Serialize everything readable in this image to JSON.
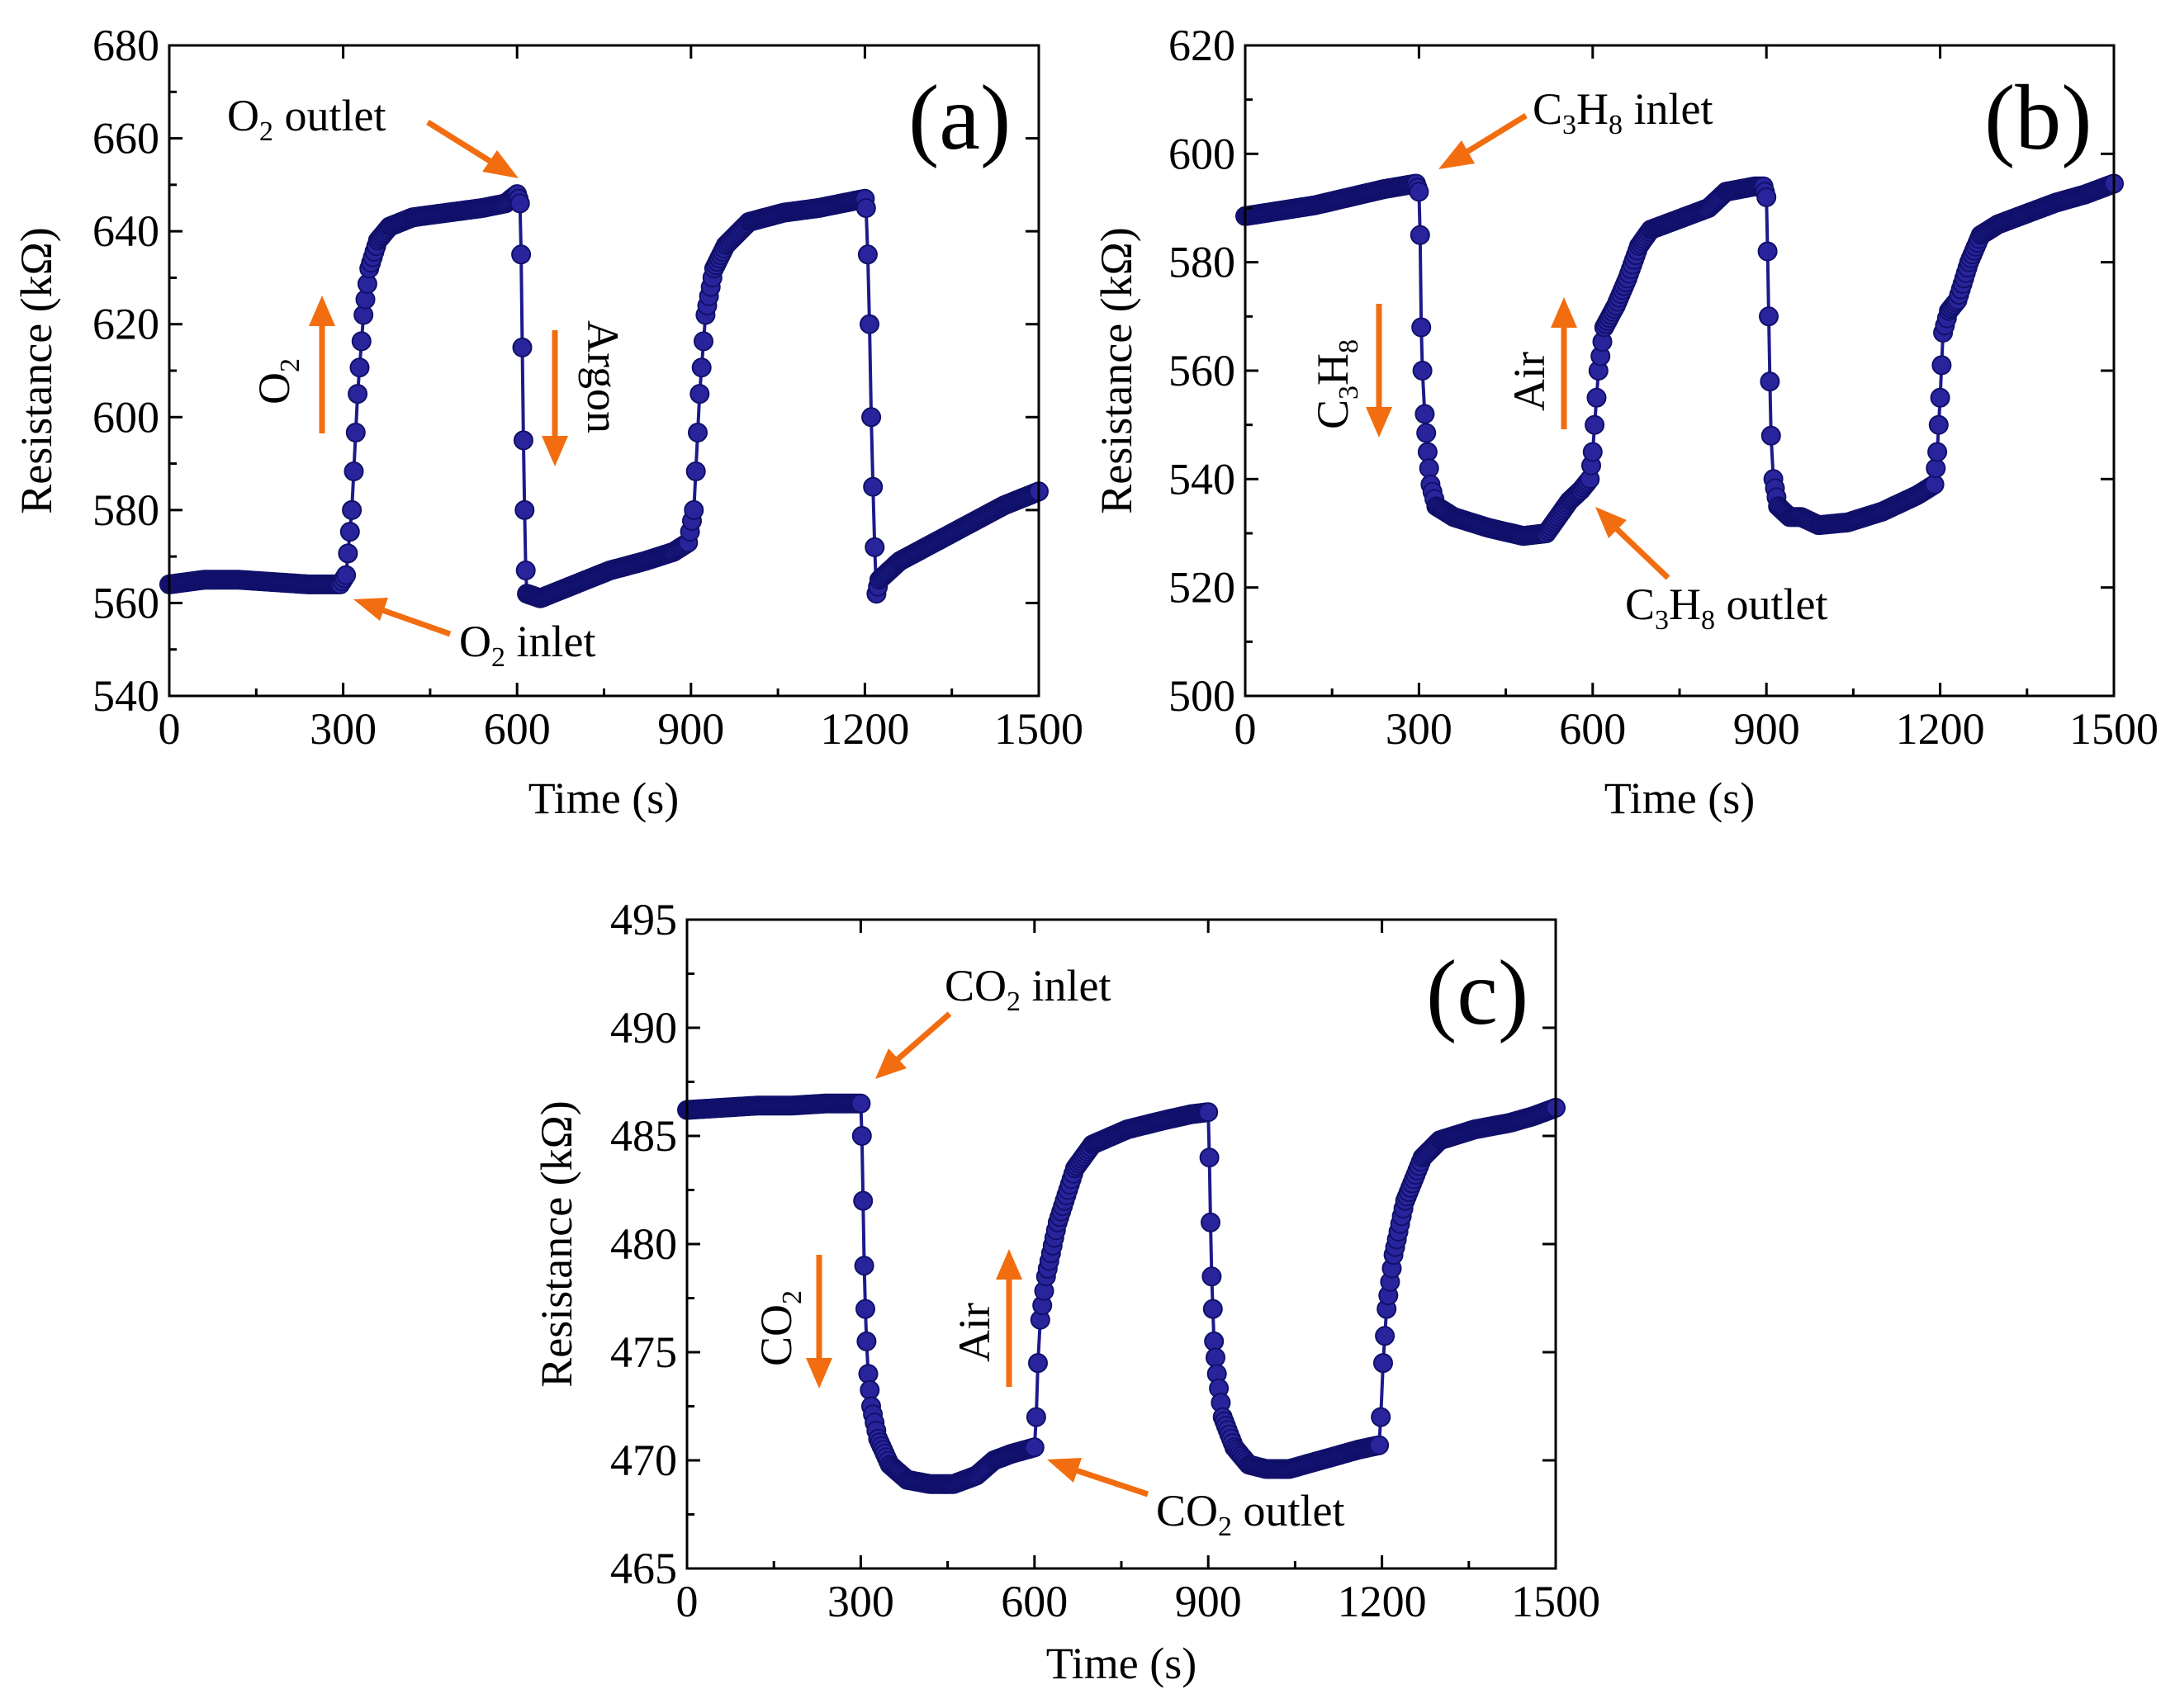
{
  "chart_data": [
    {
      "type": "line",
      "panel_label": "(a)",
      "xlabel": "Time (s)",
      "ylabel": "Resistance (kΩ)",
      "xlim": [
        0,
        1500
      ],
      "ylim": [
        540,
        680
      ],
      "x_ticks": [
        0,
        300,
        600,
        900,
        1200,
        1500
      ],
      "y_ticks": [
        540,
        560,
        580,
        600,
        620,
        640,
        660,
        680
      ],
      "series": [
        {
          "name": "Resistance",
          "points": [
            [
              0,
              564
            ],
            [
              60,
              565
            ],
            [
              120,
              565
            ],
            [
              180,
              564.5
            ],
            [
              240,
              564
            ],
            [
              295,
              564
            ],
            [
              305,
              566
            ],
            [
              315,
              580
            ],
            [
              325,
              605
            ],
            [
              335,
              622
            ],
            [
              345,
              632
            ],
            [
              360,
              638
            ],
            [
              380,
              641
            ],
            [
              420,
              643
            ],
            [
              480,
              644
            ],
            [
              540,
              645
            ],
            [
              580,
              646
            ],
            [
              600,
              648
            ],
            [
              605,
              646
            ],
            [
              607,
              635
            ],
            [
              609,
              615
            ],
            [
              611,
              595
            ],
            [
              613,
              580
            ],
            [
              615,
              567
            ],
            [
              617,
              562
            ],
            [
              640,
              561
            ],
            [
              700,
              564
            ],
            [
              760,
              567
            ],
            [
              820,
              569
            ],
            [
              870,
              571
            ],
            [
              895,
              573
            ],
            [
              905,
              580
            ],
            [
              915,
              605
            ],
            [
              925,
              622
            ],
            [
              940,
              632
            ],
            [
              960,
              637
            ],
            [
              1000,
              642
            ],
            [
              1060,
              644
            ],
            [
              1120,
              645
            ],
            [
              1160,
              646
            ],
            [
              1200,
              647
            ],
            [
              1202,
              645
            ],
            [
              1205,
              635
            ],
            [
              1208,
              620
            ],
            [
              1211,
              600
            ],
            [
              1214,
              585
            ],
            [
              1217,
              572
            ],
            [
              1220,
              562
            ],
            [
              1225,
              565
            ],
            [
              1260,
              569
            ],
            [
              1320,
              573
            ],
            [
              1380,
              577
            ],
            [
              1440,
              581
            ],
            [
              1500,
              584
            ]
          ]
        }
      ],
      "annotations": [
        {
          "text": "O₂ outlet",
          "target": [
            600,
            646
          ]
        },
        {
          "text": "O₂ inlet",
          "target": [
            300,
            564
          ]
        },
        {
          "text": "O₂",
          "direction": "up"
        },
        {
          "text": "Argon",
          "direction": "down"
        }
      ]
    },
    {
      "type": "line",
      "panel_label": "(b)",
      "xlabel": "Time (s)",
      "ylabel": "Resistance (kΩ)",
      "xlim": [
        0,
        1500
      ],
      "ylim": [
        500,
        620
      ],
      "x_ticks": [
        0,
        300,
        600,
        900,
        1200,
        1500
      ],
      "y_ticks": [
        500,
        520,
        540,
        560,
        580,
        600,
        620
      ],
      "series": [
        {
          "name": "Resistance",
          "points": [
            [
              0,
              588.5
            ],
            [
              60,
              589.5
            ],
            [
              120,
              590.5
            ],
            [
              180,
              592
            ],
            [
              240,
              593.5
            ],
            [
              295,
              594.5
            ],
            [
              300,
              593
            ],
            [
              302,
              585
            ],
            [
              304,
              568
            ],
            [
              306,
              560
            ],
            [
              310,
              552
            ],
            [
              315,
              545
            ],
            [
              320,
              539
            ],
            [
              330,
              535
            ],
            [
              360,
              533
            ],
            [
              420,
              531
            ],
            [
              480,
              529.5
            ],
            [
              520,
              530
            ],
            [
              540,
              533
            ],
            [
              560,
              536
            ],
            [
              580,
              538
            ],
            [
              595,
              540
            ],
            [
              600,
              545
            ],
            [
              610,
              560
            ],
            [
              620,
              568
            ],
            [
              640,
              572
            ],
            [
              660,
              577
            ],
            [
              680,
              583
            ],
            [
              700,
              586
            ],
            [
              750,
              588
            ],
            [
              800,
              590
            ],
            [
              830,
              593
            ],
            [
              880,
              594
            ],
            [
              895,
              594
            ],
            [
              900,
              592
            ],
            [
              902,
              582
            ],
            [
              904,
              570
            ],
            [
              906,
              558
            ],
            [
              908,
              548
            ],
            [
              912,
              540
            ],
            [
              920,
              535
            ],
            [
              940,
              533
            ],
            [
              960,
              533
            ],
            [
              990,
              531.5
            ],
            [
              1040,
              532
            ],
            [
              1100,
              534
            ],
            [
              1160,
              537
            ],
            [
              1190,
              539
            ],
            [
              1195,
              545
            ],
            [
              1200,
              555
            ],
            [
              1205,
              567
            ],
            [
              1215,
              571
            ],
            [
              1230,
              573
            ],
            [
              1250,
              580
            ],
            [
              1270,
              585
            ],
            [
              1300,
              587
            ],
            [
              1350,
              589
            ],
            [
              1400,
              591
            ],
            [
              1450,
              592.5
            ],
            [
              1500,
              594.5
            ]
          ]
        }
      ],
      "annotations": [
        {
          "text": "C₃H₈ inlet",
          "target": [
            300,
            594
          ]
        },
        {
          "text": "C₃H₈ outlet",
          "target": [
            600,
            540
          ]
        },
        {
          "text": "C₃H₈",
          "direction": "down"
        },
        {
          "text": "Air",
          "direction": "up"
        }
      ]
    },
    {
      "type": "line",
      "panel_label": "(c)",
      "xlabel": "Time (s)",
      "ylabel": "Resistance (kΩ)",
      "xlim": [
        0,
        1500
      ],
      "ylim": [
        465,
        495
      ],
      "x_ticks": [
        0,
        300,
        600,
        900,
        1200,
        1500
      ],
      "y_ticks": [
        465,
        470,
        475,
        480,
        485,
        490,
        495
      ],
      "series": [
        {
          "name": "Resistance",
          "points": [
            [
              0,
              486.2
            ],
            [
              60,
              486.3
            ],
            [
              120,
              486.4
            ],
            [
              180,
              486.4
            ],
            [
              240,
              486.5
            ],
            [
              300,
              486.5
            ],
            [
              302,
              485
            ],
            [
              304,
              482
            ],
            [
              306,
              479
            ],
            [
              308,
              477
            ],
            [
              310,
              475.5
            ],
            [
              313,
              474
            ],
            [
              318,
              472.5
            ],
            [
              330,
              471
            ],
            [
              350,
              469.8
            ],
            [
              380,
              469.1
            ],
            [
              420,
              468.9
            ],
            [
              460,
              468.9
            ],
            [
              500,
              469.3
            ],
            [
              530,
              470
            ],
            [
              560,
              470.3
            ],
            [
              600,
              470.6
            ],
            [
              603,
              472
            ],
            [
              606,
              474.5
            ],
            [
              610,
              476.5
            ],
            [
              620,
              478.5
            ],
            [
              640,
              481
            ],
            [
              670,
              483.5
            ],
            [
              700,
              484.6
            ],
            [
              760,
              485.3
            ],
            [
              820,
              485.7
            ],
            [
              870,
              486
            ],
            [
              900,
              486.1
            ],
            [
              902,
              484
            ],
            [
              904,
              481
            ],
            [
              906,
              478.5
            ],
            [
              908,
              477
            ],
            [
              910,
              475.5
            ],
            [
              915,
              474
            ],
            [
              925,
              472
            ],
            [
              945,
              470.6
            ],
            [
              970,
              469.8
            ],
            [
              1000,
              469.6
            ],
            [
              1040,
              469.6
            ],
            [
              1080,
              469.9
            ],
            [
              1120,
              470.2
            ],
            [
              1160,
              470.5
            ],
            [
              1195,
              470.7
            ],
            [
              1198,
              472
            ],
            [
              1202,
              474.5
            ],
            [
              1208,
              477
            ],
            [
              1220,
              479.5
            ],
            [
              1240,
              482
            ],
            [
              1270,
              484
            ],
            [
              1300,
              484.8
            ],
            [
              1360,
              485.3
            ],
            [
              1420,
              485.6
            ],
            [
              1460,
              485.9
            ],
            [
              1500,
              486.3
            ]
          ]
        }
      ],
      "annotations": [
        {
          "text": "CO₂ inlet",
          "target": [
            300,
            486.5
          ]
        },
        {
          "text": "CO₂ outlet",
          "target": [
            600,
            470.6
          ]
        },
        {
          "text": "CO₂",
          "direction": "down"
        },
        {
          "text": "Air",
          "direction": "up"
        }
      ]
    }
  ],
  "colors": {
    "series": "#2a249c",
    "arrow": "#f26d10"
  }
}
